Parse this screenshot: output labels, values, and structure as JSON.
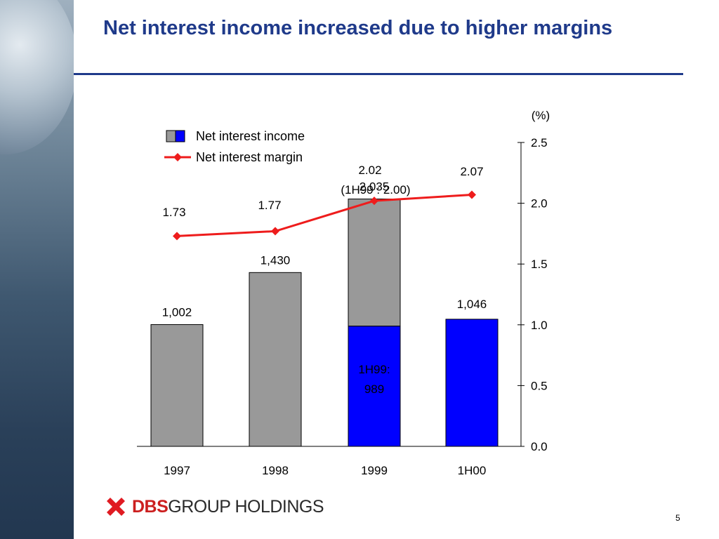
{
  "slide": {
    "title": "Net interest income increased due to higher margins",
    "page_number": "5",
    "logo": {
      "brand": "DBS",
      "rest": "GROUP HOLDINGS"
    }
  },
  "colors": {
    "title": "#1f3a8a",
    "bar_gray": "#999999",
    "bar_blue": "#0000ff",
    "line_red": "#ee1c1c"
  },
  "chart_data": {
    "type": "bar",
    "categories": [
      "1997",
      "1998",
      "1999",
      "1H00"
    ],
    "left_axis_max": 2500,
    "series": [
      {
        "name": "Net interest income",
        "values": [
          1002,
          1430,
          2035,
          1046
        ],
        "blue_portion": [
          0,
          0,
          989,
          1046
        ],
        "labels": [
          "1,002",
          "1,430",
          "2,035",
          "1,046"
        ],
        "inner_label": {
          "category": "1999",
          "lines": [
            "1H99:",
            "989"
          ]
        }
      },
      {
        "name": "Net interest margin",
        "type": "line",
        "axis": "right",
        "values": [
          1.73,
          1.77,
          2.02,
          2.07
        ],
        "labels": [
          "1.73",
          "1.77",
          "2.02",
          "2.07"
        ],
        "extra_label": {
          "category": "1999",
          "text": "(1H99 : 2.00)"
        }
      }
    ],
    "right_axis": {
      "unit": "(%)",
      "ylim": [
        0,
        2.5
      ],
      "ticks": [
        "0.0",
        "0.5",
        "1.0",
        "1.5",
        "2.0",
        "2.5"
      ]
    },
    "legend": {
      "placement": "top-left"
    }
  }
}
